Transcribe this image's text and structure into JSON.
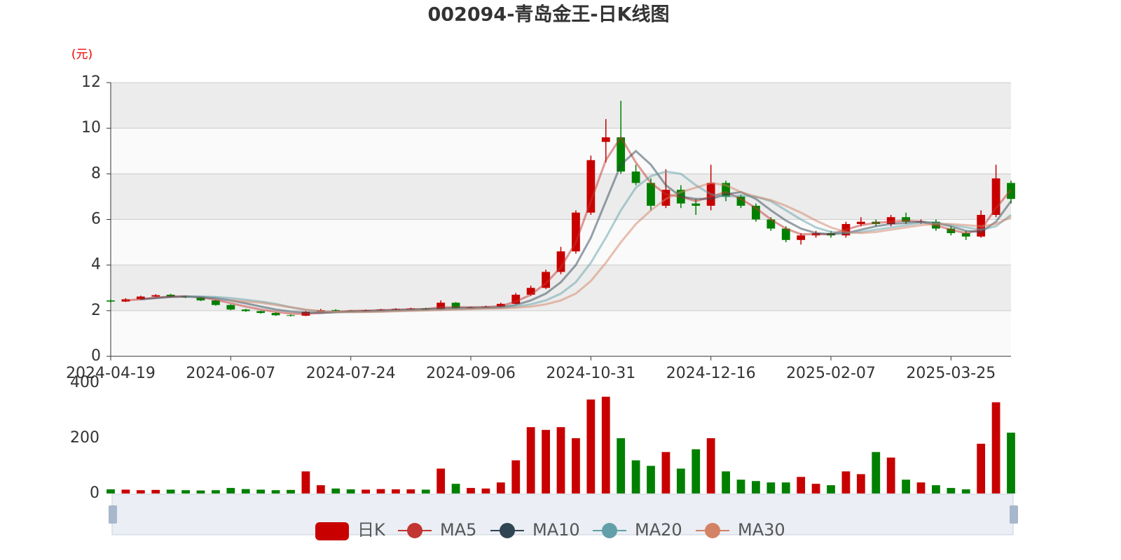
{
  "chart_data": {
    "type": "candlestick",
    "title": "002094-青岛金王-日K线图",
    "y_unit": "(元)",
    "categories": [
      "2024-04-19",
      null,
      null,
      null,
      null,
      null,
      null,
      null,
      "2024-06-07",
      null,
      null,
      null,
      null,
      null,
      null,
      null,
      "2024-07-24",
      null,
      null,
      null,
      null,
      null,
      null,
      null,
      "2024-09-06",
      null,
      null,
      null,
      null,
      null,
      null,
      null,
      "2024-10-31",
      null,
      null,
      null,
      null,
      null,
      null,
      null,
      "2024-12-16",
      null,
      null,
      null,
      null,
      null,
      null,
      null,
      "2025-02-07",
      null,
      null,
      null,
      null,
      null,
      null,
      null,
      "2025-03-25",
      null,
      null,
      null,
      null
    ],
    "candle_name": "日K",
    "up_color": "#c80000",
    "down_color": "#008000",
    "open": [
      2.45,
      2.4,
      2.5,
      2.62,
      2.7,
      2.62,
      2.58,
      2.45,
      2.25,
      2.05,
      1.98,
      1.9,
      1.8,
      1.78,
      1.95,
      2.03,
      2.0,
      1.98,
      2.02,
      2.05,
      2.08,
      2.1,
      2.05,
      2.35,
      2.1,
      2.15,
      2.18,
      2.3,
      2.7,
      3.0,
      3.7,
      4.6,
      6.3,
      9.4,
      9.6,
      8.1,
      7.6,
      6.6,
      7.3,
      6.7,
      6.6,
      7.6,
      7.0,
      6.6,
      6.0,
      5.6,
      5.1,
      5.3,
      5.4,
      5.3,
      5.8,
      5.9,
      5.8,
      6.1,
      5.9,
      5.9,
      5.6,
      5.4,
      5.25,
      6.2,
      7.6
    ],
    "close": [
      2.4,
      2.5,
      2.62,
      2.68,
      2.62,
      2.58,
      2.45,
      2.25,
      2.05,
      1.98,
      1.9,
      1.8,
      1.78,
      1.95,
      2.02,
      2.0,
      1.98,
      2.02,
      2.05,
      2.08,
      2.1,
      2.05,
      2.35,
      2.1,
      2.15,
      2.18,
      2.3,
      2.7,
      3.0,
      3.7,
      4.6,
      6.3,
      8.6,
      9.6,
      8.1,
      7.6,
      6.6,
      7.3,
      6.7,
      6.6,
      7.6,
      7.0,
      6.6,
      6.0,
      5.6,
      5.1,
      5.3,
      5.4,
      5.3,
      5.8,
      5.9,
      5.8,
      6.1,
      5.9,
      5.9,
      5.6,
      5.4,
      5.25,
      6.2,
      7.8,
      6.9
    ],
    "low": [
      2.35,
      2.38,
      2.48,
      2.6,
      2.58,
      2.55,
      2.42,
      2.22,
      2.02,
      1.95,
      1.87,
      1.77,
      1.75,
      1.76,
      1.93,
      1.98,
      1.96,
      1.96,
      2.0,
      2.03,
      2.05,
      2.02,
      2.03,
      2.07,
      2.08,
      2.12,
      2.15,
      2.28,
      2.65,
      2.95,
      3.6,
      4.5,
      6.2,
      8.5,
      8.0,
      7.5,
      6.4,
      6.5,
      6.5,
      6.2,
      6.4,
      6.8,
      6.5,
      5.9,
      5.5,
      5.0,
      4.9,
      5.2,
      5.2,
      5.2,
      5.7,
      5.7,
      5.7,
      5.8,
      5.8,
      5.5,
      5.3,
      5.1,
      5.2,
      6.1,
      6.7
    ],
    "high": [
      2.5,
      2.55,
      2.66,
      2.72,
      2.74,
      2.66,
      2.6,
      2.48,
      2.28,
      2.08,
      2.0,
      1.93,
      1.84,
      1.98,
      2.08,
      2.06,
      2.03,
      2.05,
      2.08,
      2.11,
      2.13,
      2.13,
      2.45,
      2.38,
      2.18,
      2.22,
      2.35,
      2.78,
      3.1,
      3.8,
      4.8,
      6.4,
      8.8,
      10.4,
      11.2,
      8.4,
      7.8,
      8.2,
      7.5,
      6.9,
      8.4,
      7.7,
      7.1,
      6.7,
      6.1,
      5.7,
      5.4,
      5.5,
      5.5,
      5.9,
      6.1,
      6.0,
      6.2,
      6.3,
      6.0,
      6.0,
      5.7,
      5.5,
      6.4,
      8.4,
      7.7
    ],
    "ylim": [
      0,
      12
    ],
    "yticks": [
      0,
      2,
      4,
      6,
      8,
      10,
      12
    ],
    "series": [
      {
        "name": "MA5",
        "color": "#c23531",
        "values": [
          null,
          2.45,
          2.5,
          2.57,
          2.62,
          2.63,
          2.58,
          2.48,
          2.33,
          2.18,
          2.05,
          1.95,
          1.87,
          1.86,
          1.9,
          1.95,
          1.99,
          2.0,
          2.02,
          2.04,
          2.06,
          2.07,
          2.15,
          2.15,
          2.15,
          2.16,
          2.2,
          2.4,
          2.7,
          3.2,
          3.9,
          5.0,
          6.8,
          8.6,
          9.6,
          8.5,
          7.6,
          7.1,
          7.0,
          6.8,
          7.0,
          7.2,
          6.9,
          6.5,
          6.0,
          5.6,
          5.35,
          5.35,
          5.35,
          5.55,
          5.75,
          5.85,
          5.9,
          5.95,
          5.9,
          5.75,
          5.55,
          5.4,
          5.55,
          6.5,
          7.3
        ]
      },
      {
        "name": "MA10",
        "color": "#2f4554",
        "values": [
          null,
          null,
          2.5,
          2.55,
          2.6,
          2.62,
          2.6,
          2.55,
          2.45,
          2.32,
          2.18,
          2.05,
          1.96,
          1.92,
          1.91,
          1.93,
          1.96,
          1.98,
          2.0,
          2.02,
          2.04,
          2.06,
          2.09,
          2.11,
          2.12,
          2.13,
          2.15,
          2.25,
          2.45,
          2.75,
          3.25,
          4.0,
          5.2,
          6.8,
          8.4,
          9.0,
          8.4,
          7.5,
          7.0,
          6.9,
          6.9,
          7.1,
          7.2,
          6.9,
          6.4,
          5.95,
          5.6,
          5.4,
          5.35,
          5.4,
          5.55,
          5.7,
          5.8,
          5.85,
          5.9,
          5.85,
          5.7,
          5.5,
          5.45,
          5.9,
          6.8
        ]
      },
      {
        "name": "MA20",
        "color": "#61a0a8",
        "values": [
          null,
          null,
          null,
          null,
          null,
          2.62,
          2.62,
          2.6,
          2.55,
          2.48,
          2.4,
          2.3,
          2.15,
          2.03,
          1.97,
          1.94,
          1.94,
          1.95,
          1.97,
          1.99,
          2.01,
          2.03,
          2.05,
          2.07,
          2.09,
          2.11,
          2.13,
          2.18,
          2.28,
          2.45,
          2.75,
          3.25,
          4.1,
          5.2,
          6.4,
          7.4,
          7.9,
          8.1,
          8.0,
          7.5,
          7.1,
          7.0,
          7.05,
          7.0,
          6.8,
          6.4,
          6.0,
          5.65,
          5.45,
          5.4,
          5.45,
          5.55,
          5.65,
          5.75,
          5.85,
          5.85,
          5.75,
          5.65,
          5.55,
          5.7,
          6.2
        ]
      },
      {
        "name": "MA30",
        "color": "#d48265",
        "values": [
          null,
          null,
          null,
          null,
          null,
          null,
          null,
          null,
          2.45,
          2.4,
          2.35,
          2.25,
          2.15,
          2.05,
          1.98,
          1.95,
          1.94,
          1.94,
          1.95,
          1.97,
          1.99,
          2.01,
          2.03,
          2.05,
          2.07,
          2.09,
          2.1,
          2.13,
          2.18,
          2.28,
          2.45,
          2.75,
          3.3,
          4.1,
          5.0,
          5.8,
          6.4,
          6.9,
          7.2,
          7.4,
          7.6,
          7.5,
          7.2,
          7.0,
          6.85,
          6.6,
          6.3,
          5.95,
          5.65,
          5.45,
          5.4,
          5.45,
          5.55,
          5.65,
          5.75,
          5.8,
          5.8,
          5.75,
          5.7,
          5.8,
          6.1
        ]
      }
    ],
    "volume": {
      "values": [
        15,
        14,
        12,
        13,
        14,
        12,
        11,
        12,
        20,
        16,
        14,
        12,
        13,
        80,
        30,
        18,
        15,
        14,
        16,
        15,
        15,
        14,
        90,
        35,
        20,
        18,
        40,
        120,
        240,
        230,
        240,
        200,
        340,
        350,
        200,
        120,
        100,
        150,
        90,
        160,
        200,
        80,
        50,
        45,
        40,
        40,
        60,
        35,
        30,
        80,
        70,
        150,
        130,
        50,
        40,
        30,
        20,
        15,
        180,
        330,
        220
      ],
      "ylim": [
        0,
        400
      ],
      "yticks": [
        0,
        200,
        400
      ]
    }
  }
}
